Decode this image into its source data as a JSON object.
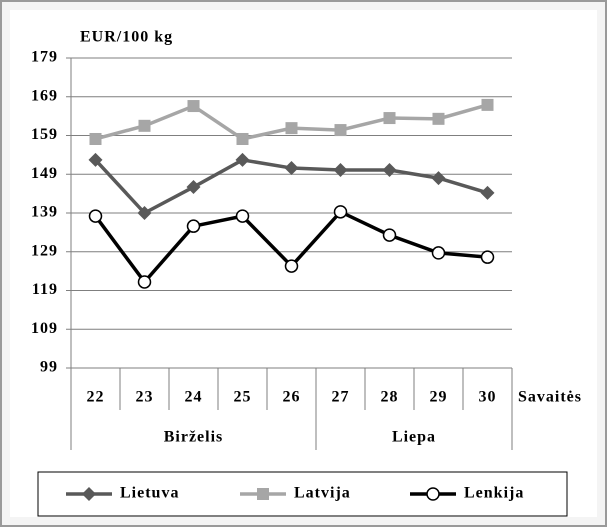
{
  "chart_data": {
    "type": "line",
    "y_axis_label": "EUR/100 kg",
    "x_axis_label": "Savaitės",
    "categories": [
      "22",
      "23",
      "24",
      "25",
      "26",
      "27",
      "28",
      "29",
      "30"
    ],
    "groups": [
      {
        "label": "Birželis",
        "count": 5
      },
      {
        "label": "Liepa",
        "count": 4
      }
    ],
    "series": [
      {
        "name": "Lietuva",
        "color": "#595959",
        "marker": "diamond",
        "values": [
          152.7,
          139,
          145.7,
          152.7,
          150.6,
          150.1,
          150.1,
          148,
          144.2
        ]
      },
      {
        "name": "Latvija",
        "color": "#a6a6a6",
        "marker": "square",
        "values": [
          158.1,
          161.5,
          166.6,
          158.1,
          160.9,
          160.4,
          163.5,
          163.3,
          166.9
        ]
      },
      {
        "name": "Lenkija",
        "color": "#000000",
        "marker": "circle",
        "values": [
          138.2,
          121.2,
          135.6,
          138.2,
          125.3,
          139.3,
          133.3,
          128.7,
          127.6
        ]
      }
    ],
    "ylim": [
      99,
      179
    ],
    "yticks": [
      99,
      109,
      119,
      129,
      139,
      149,
      159,
      169,
      179
    ],
    "grid": true,
    "legend": "bottom"
  }
}
